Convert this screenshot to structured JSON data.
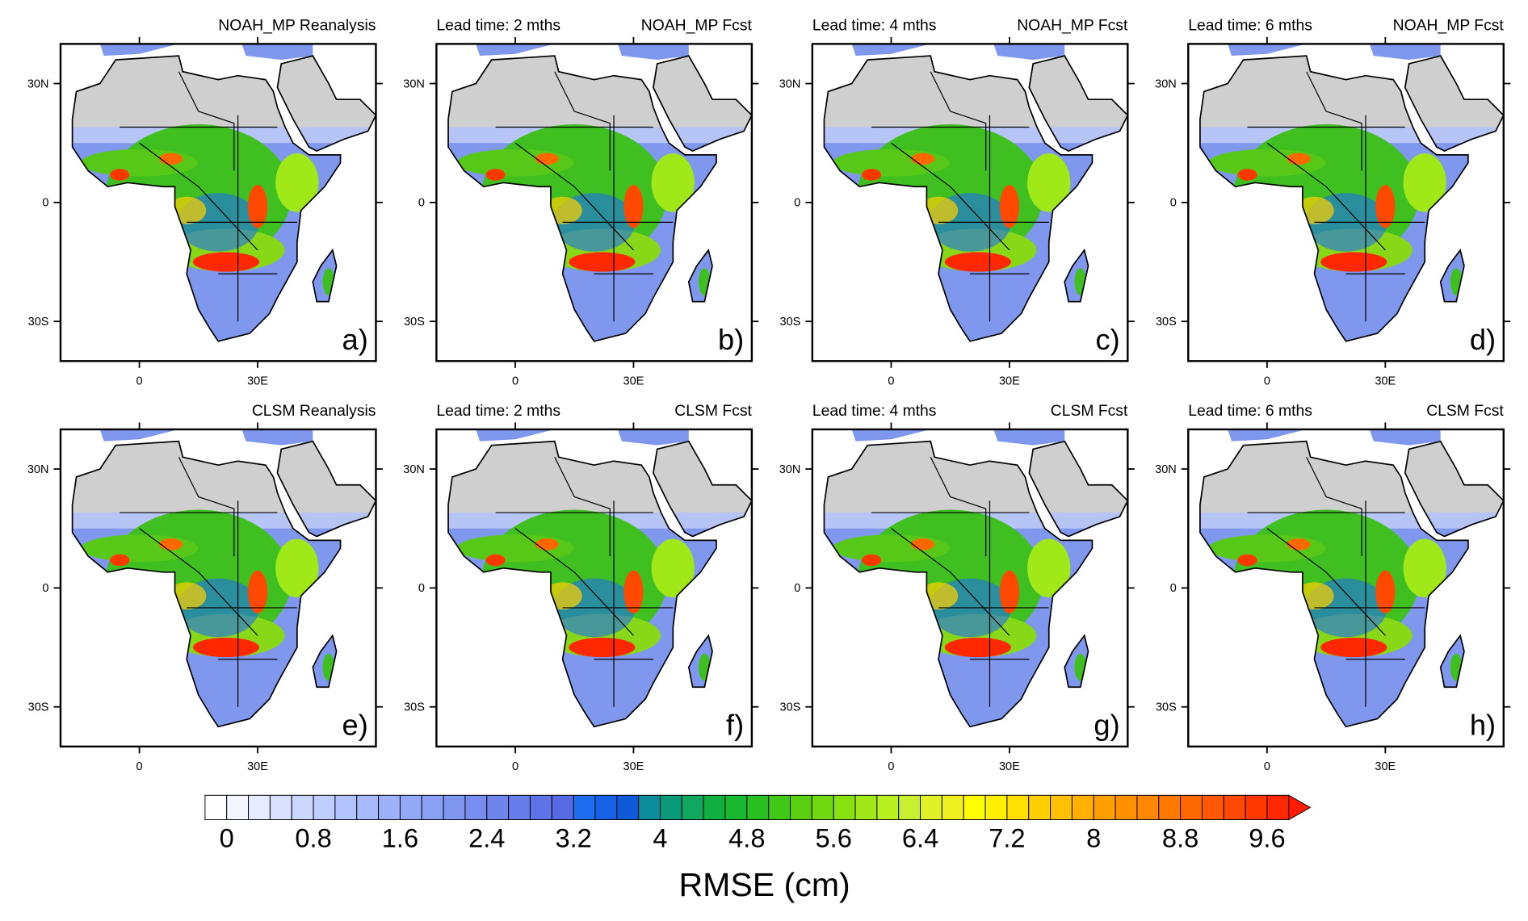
{
  "map_axes": {
    "xlim": [
      -20,
      60
    ],
    "ylim": [
      -40,
      40
    ],
    "xticks": [
      0,
      {
        "value": 30,
        "label": "30E"
      }
    ],
    "yticks": [
      {
        "value": 30,
        "label": "30N"
      },
      0,
      {
        "value": -30,
        "label": "30S"
      }
    ]
  },
  "panels": [
    {
      "right_title": "NOAH_MP Reanalysis",
      "letter": "a)"
    },
    {
      "left_title": "Lead time: 2 mths",
      "right_title": "NOAH_MP Fcst",
      "letter": "b)"
    },
    {
      "left_title": "Lead time: 4 mths",
      "right_title": "NOAH_MP Fcst",
      "letter": "c)"
    },
    {
      "left_title": "Lead time: 6 mths",
      "right_title": "NOAH_MP Fcst",
      "letter": "d)"
    },
    {
      "right_title": "CLSM Reanalysis",
      "letter": "e)"
    },
    {
      "left_title": "Lead time: 2 mths",
      "right_title": "CLSM Fcst",
      "letter": "f)"
    },
    {
      "left_title": "Lead time: 4 mths",
      "right_title": "CLSM Fcst",
      "letter": "g)"
    },
    {
      "left_title": "Lead time: 6 mths",
      "right_title": "CLSM Fcst",
      "letter": "h)"
    }
  ],
  "colorbar": {
    "title": "RMSE (cm)",
    "lim": [
      -0.2,
      9.8
    ],
    "ticks": [
      0,
      0.8,
      1.6,
      2.4,
      3.2,
      4,
      4.8,
      5.6,
      6.4,
      7.2,
      8,
      8.8,
      9.6
    ],
    "colors": [
      "#ffffff",
      "#f4f6ff",
      "#e6ebff",
      "#d9e1ff",
      "#ccd7ff",
      "#c0cdff",
      "#b3c3fd",
      "#a8bafb",
      "#9db1f9",
      "#93a8f6",
      "#89a0f4",
      "#8097f2",
      "#778eef",
      "#6e85ec",
      "#667ce9",
      "#5f73e6",
      "#5869e4",
      "#1e6cf0",
      "#1662e6",
      "#0f5ad8",
      "#0a8c9c",
      "#0a9a7a",
      "#10a860",
      "#10b040",
      "#18b830",
      "#28c020",
      "#40c818",
      "#58d010",
      "#70d810",
      "#88e010",
      "#a0e818",
      "#b8f020",
      "#c8f030",
      "#e0f028",
      "#f0f020",
      "#ffff00",
      "#fff000",
      "#ffe000",
      "#ffd000",
      "#ffc000",
      "#ffb000",
      "#ffa000",
      "#ff9000",
      "#ff8800",
      "#ff7800",
      "#ff6800",
      "#ff5800",
      "#ff4800",
      "#ff3800",
      "#ff2800"
    ],
    "over_color": "#ff1a00"
  }
}
